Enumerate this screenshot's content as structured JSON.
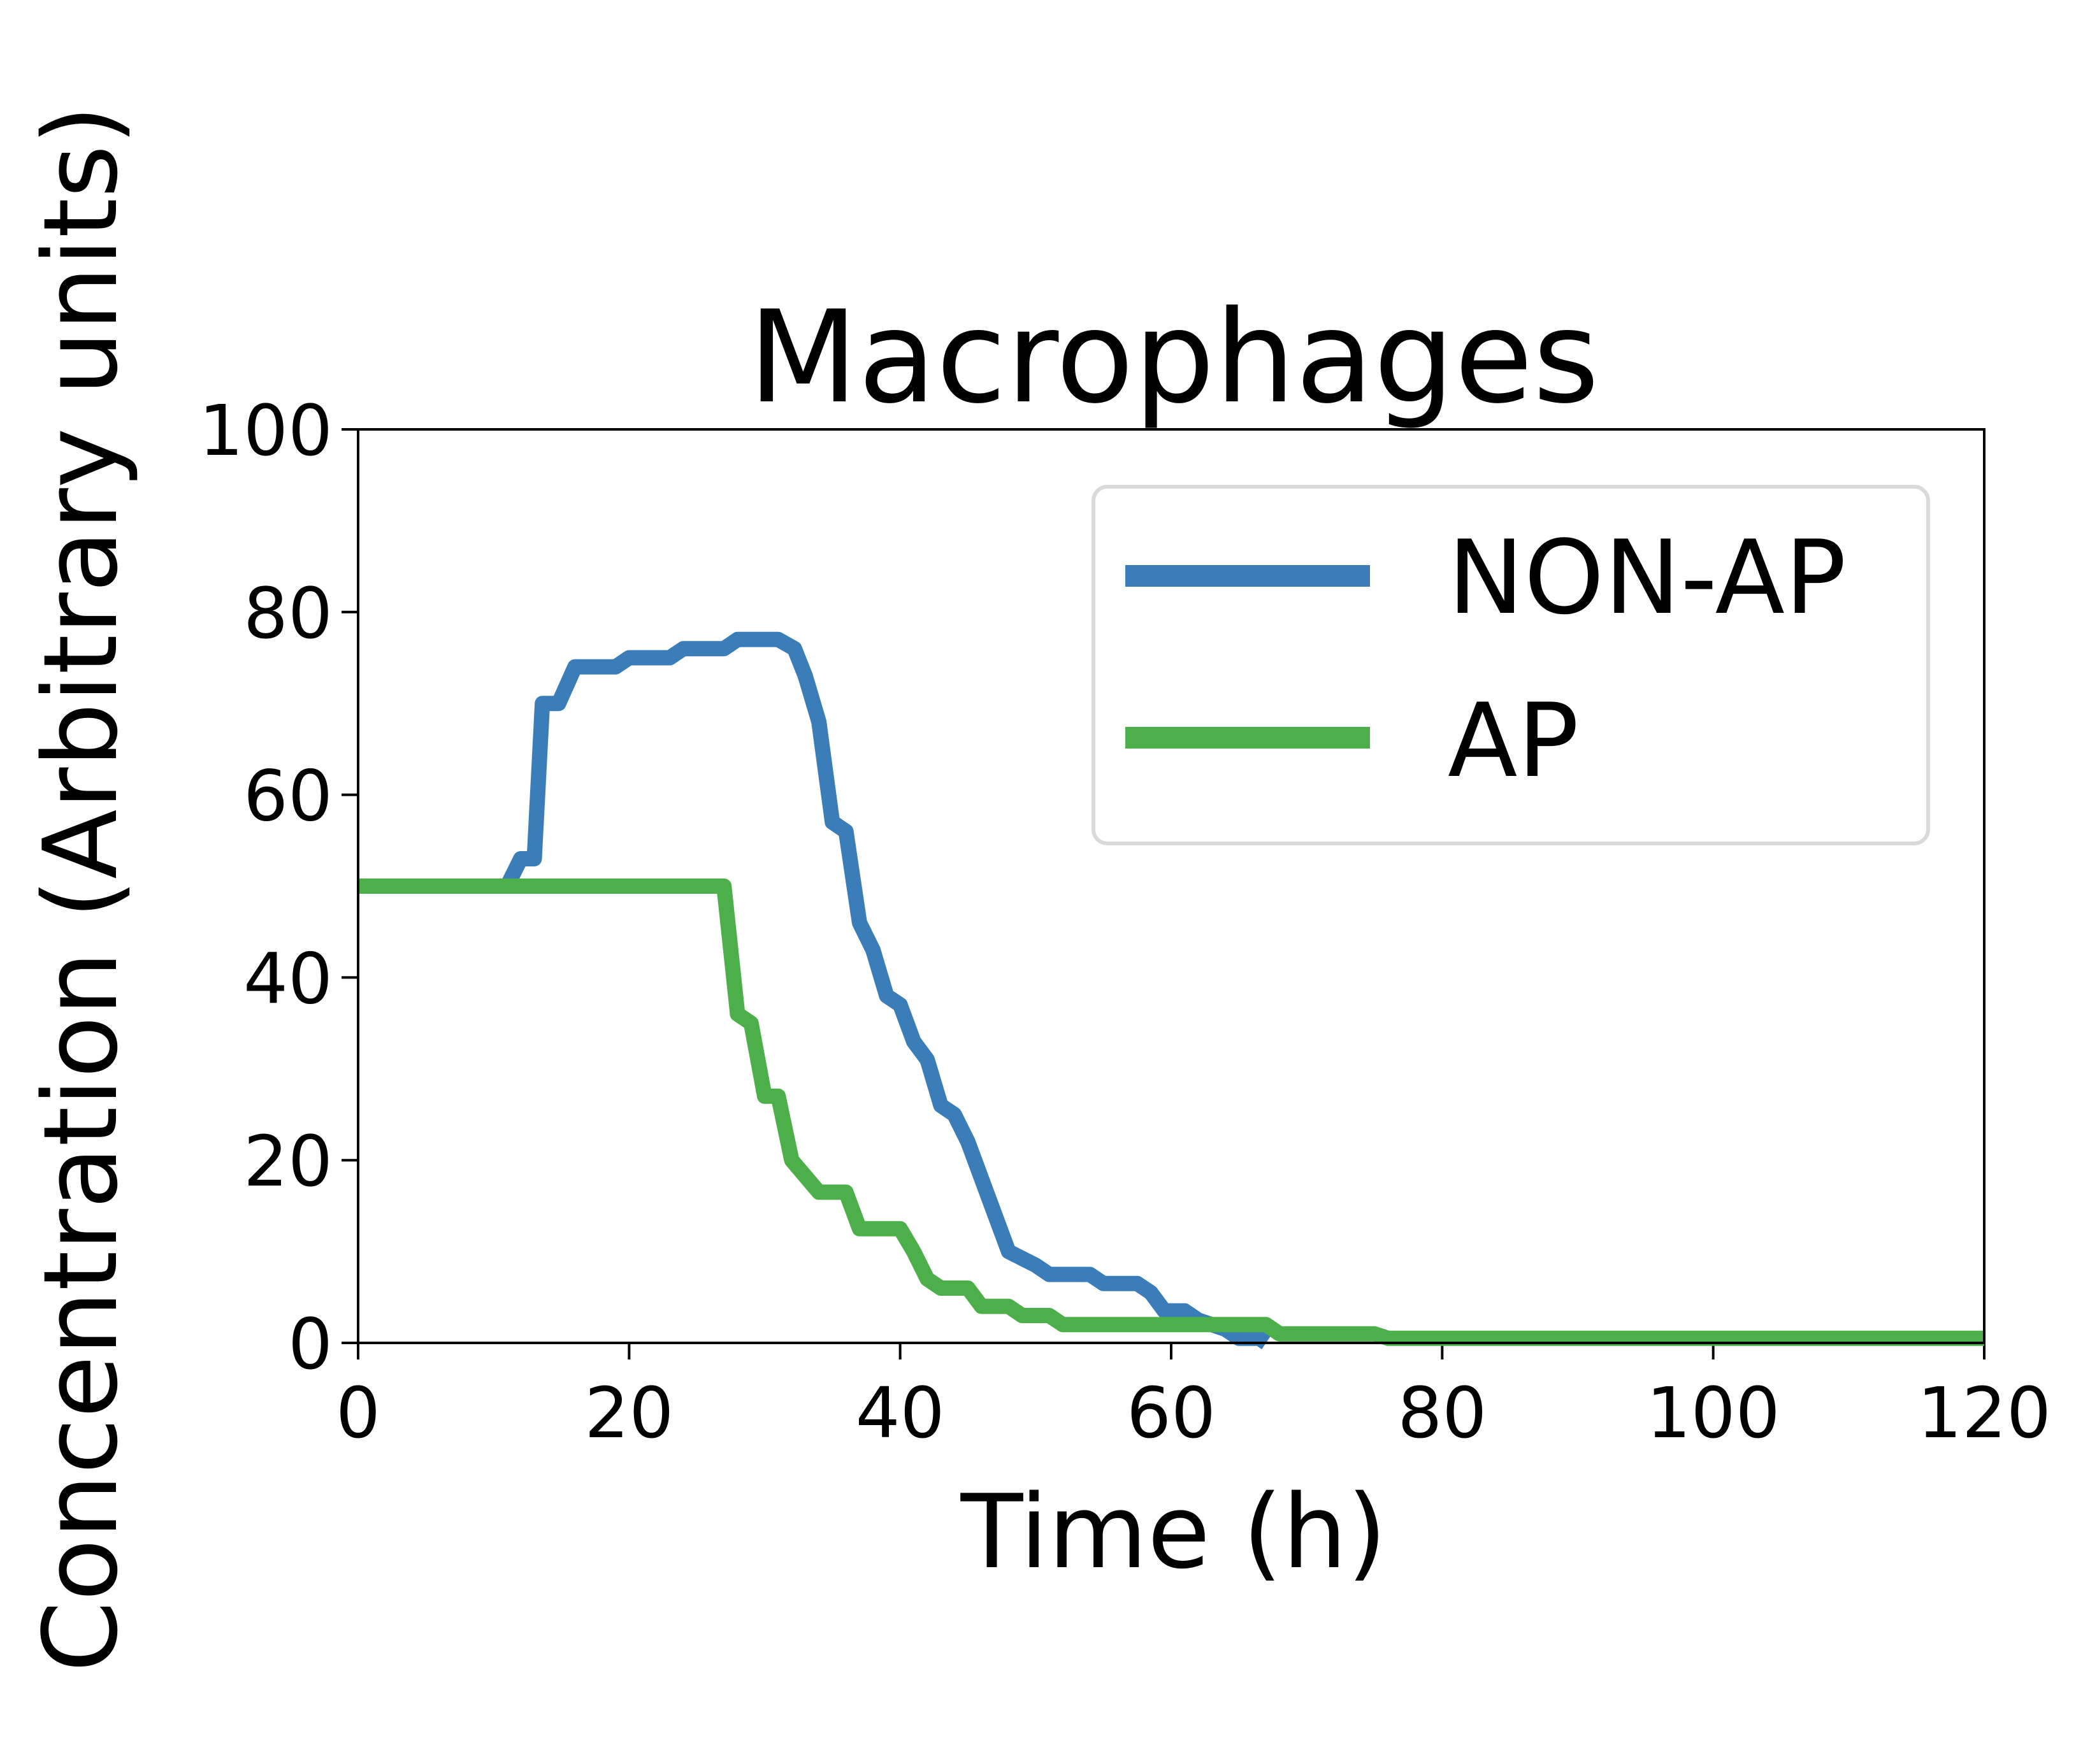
{
  "chart_data": {
    "type": "line",
    "title": "Macrophages",
    "xlabel": "Time (h)",
    "ylabel": "Concentration (Arbitrary units)",
    "xlim": [
      0,
      120
    ],
    "ylim": [
      0,
      100
    ],
    "xticks": [
      "0",
      "20",
      "40",
      "60",
      "80",
      "100",
      "120"
    ],
    "yticks": [
      "0",
      "20",
      "40",
      "60",
      "80",
      "100"
    ],
    "grid": false,
    "legend_position": "top-right",
    "series": [
      {
        "name": "NON-AP",
        "color": "#3a7db8",
        "points": [
          [
            0,
            50
          ],
          [
            11,
            50
          ],
          [
            12,
            53
          ],
          [
            13,
            53
          ],
          [
            13.6,
            70
          ],
          [
            14.8,
            70
          ],
          [
            16,
            74
          ],
          [
            19,
            74
          ],
          [
            20,
            75
          ],
          [
            23,
            75
          ],
          [
            24,
            76
          ],
          [
            27,
            76
          ],
          [
            28,
            77
          ],
          [
            31,
            77
          ],
          [
            32.2,
            76
          ],
          [
            33,
            73
          ],
          [
            34,
            68
          ],
          [
            35,
            57
          ],
          [
            36,
            56
          ],
          [
            37,
            46
          ],
          [
            38,
            43
          ],
          [
            39,
            38
          ],
          [
            40,
            37
          ],
          [
            41,
            33
          ],
          [
            42,
            31
          ],
          [
            43,
            26
          ],
          [
            44,
            25
          ],
          [
            45,
            22
          ],
          [
            48,
            10
          ],
          [
            50,
            8.5
          ],
          [
            51,
            7.5
          ],
          [
            54,
            7.5
          ],
          [
            55,
            6.5
          ],
          [
            57.5,
            6.5
          ],
          [
            58.5,
            5.5
          ],
          [
            59.5,
            3.5
          ],
          [
            61,
            3.5
          ],
          [
            62,
            2.5
          ],
          [
            64,
            1.5
          ],
          [
            65,
            0.5
          ],
          [
            66.5,
            0.5
          ],
          [
            67,
            0
          ]
        ]
      },
      {
        "name": "AP",
        "color": "#4daf4a",
        "points": [
          [
            0,
            50
          ],
          [
            27,
            50
          ],
          [
            28,
            36
          ],
          [
            29,
            35
          ],
          [
            30,
            27
          ],
          [
            31,
            27
          ],
          [
            32,
            20
          ],
          [
            34,
            16.5
          ],
          [
            36,
            16.5
          ],
          [
            37,
            12.5
          ],
          [
            40,
            12.5
          ],
          [
            41,
            10
          ],
          [
            42,
            7
          ],
          [
            43,
            6
          ],
          [
            45,
            6
          ],
          [
            46,
            4
          ],
          [
            48,
            4
          ],
          [
            49,
            3
          ],
          [
            51,
            3
          ],
          [
            52,
            2
          ],
          [
            67,
            2
          ],
          [
            68,
            1
          ],
          [
            75,
            1
          ],
          [
            76,
            0.5
          ],
          [
            120,
            0.5
          ]
        ]
      }
    ]
  }
}
